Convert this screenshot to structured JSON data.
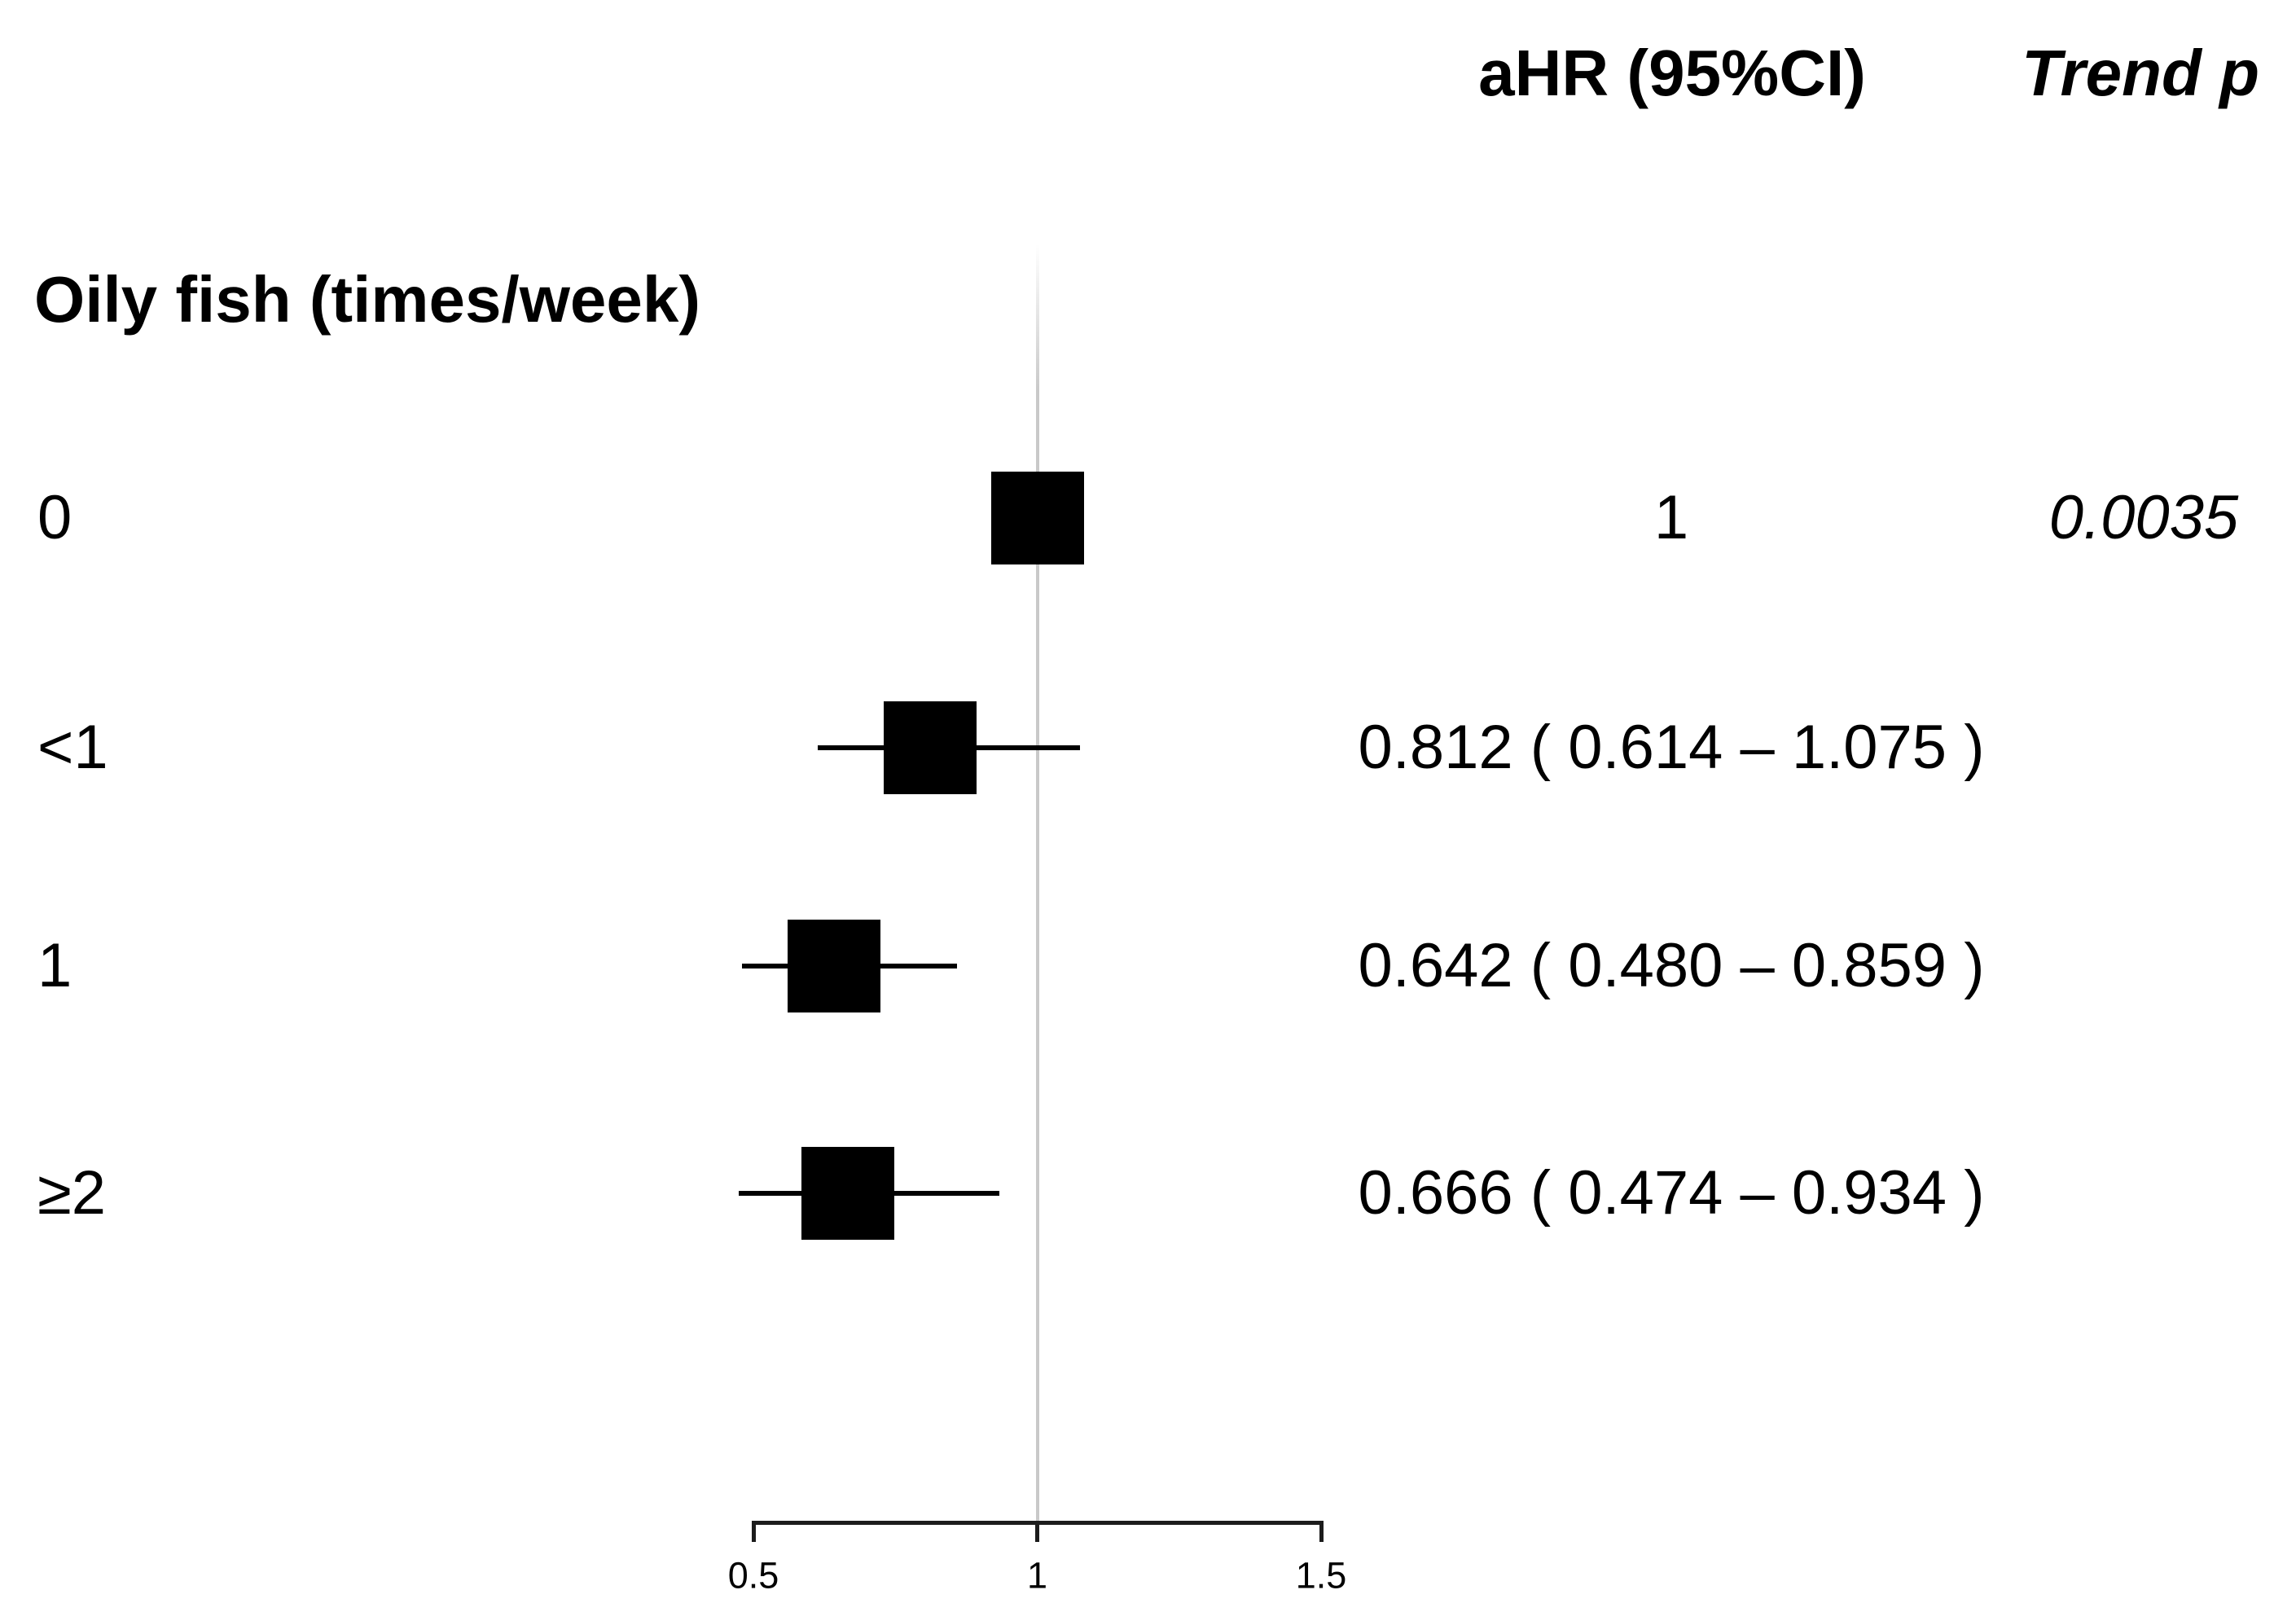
{
  "chart_data": {
    "type": "forest",
    "group_label": "Oily fish (times/week)",
    "columns": {
      "ahr_header": "aHR (95%CI)",
      "trend_header": "Trend p"
    },
    "rows": [
      {
        "label": "0",
        "hr": 1.0,
        "lo": null,
        "hi": null,
        "ahr_text": "1",
        "trend_p": "0.0035"
      },
      {
        "label": "<1",
        "hr": 0.812,
        "lo": 0.614,
        "hi": 1.075,
        "ahr_text": "0.812 ( 0.614 – 1.075 )",
        "trend_p": ""
      },
      {
        "label": "1",
        "hr": 0.642,
        "lo": 0.48,
        "hi": 0.859,
        "ahr_text": "0.642 ( 0.480 – 0.859 )",
        "trend_p": ""
      },
      {
        "label": "≥2",
        "hr": 0.666,
        "lo": 0.474,
        "hi": 0.934,
        "ahr_text": "0.666 ( 0.474 – 0.934 )",
        "trend_p": ""
      }
    ],
    "axis": {
      "xlim": [
        0.5,
        1.5
      ],
      "ticks": [
        0.5,
        1,
        1.5
      ],
      "tick_labels": [
        "0.5",
        "1",
        "1.5"
      ],
      "ref_line": 1
    },
    "legend": "none",
    "grid": "off"
  },
  "colors": {
    "text": "#000000",
    "marker": "#000000",
    "ci_line": "#000000",
    "axis": "#1c1c1c",
    "ref_line": "#c9c9c9",
    "background": "#ffffff"
  }
}
